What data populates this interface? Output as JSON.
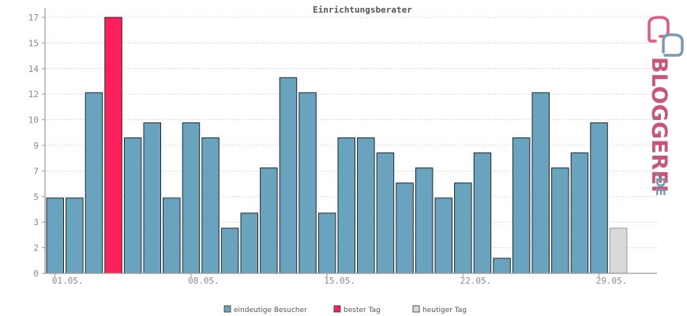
{
  "chart_data": {
    "type": "bar",
    "title": "Einrichtungsberater",
    "x_tick_labels": [
      "01.05.",
      "08.05.",
      "15.05.",
      "22.05.",
      "29.05."
    ],
    "y_tick_labels": [
      "0",
      "2",
      "3",
      "5",
      "7",
      "9",
      "10",
      "12",
      "14",
      "15",
      "17"
    ],
    "ylim": [
      0,
      17
    ],
    "grid": true,
    "values": [
      5,
      5,
      12,
      17,
      9,
      10,
      5,
      10,
      9,
      3,
      4,
      7,
      13,
      12,
      4,
      9,
      9,
      8,
      6,
      7,
      5,
      6,
      8,
      1,
      9,
      12,
      7,
      8,
      10,
      3
    ],
    "highlight_best_index": 3,
    "highlight_today_index": 29,
    "legend": [
      {
        "label": "eindeutige Besucher",
        "color": "#6aa3bd"
      },
      {
        "label": "bester Tag",
        "color": "#ff1f5b"
      },
      {
        "label": "heutiger Tag",
        "color": "#d9d9d9"
      }
    ],
    "legend_placement": "bottom"
  },
  "brand": {
    "text": "BLOGGEREI",
    "suffix": ".DE",
    "colors": {
      "pink": "#d2527a",
      "blue": "#7a9ab4"
    }
  }
}
